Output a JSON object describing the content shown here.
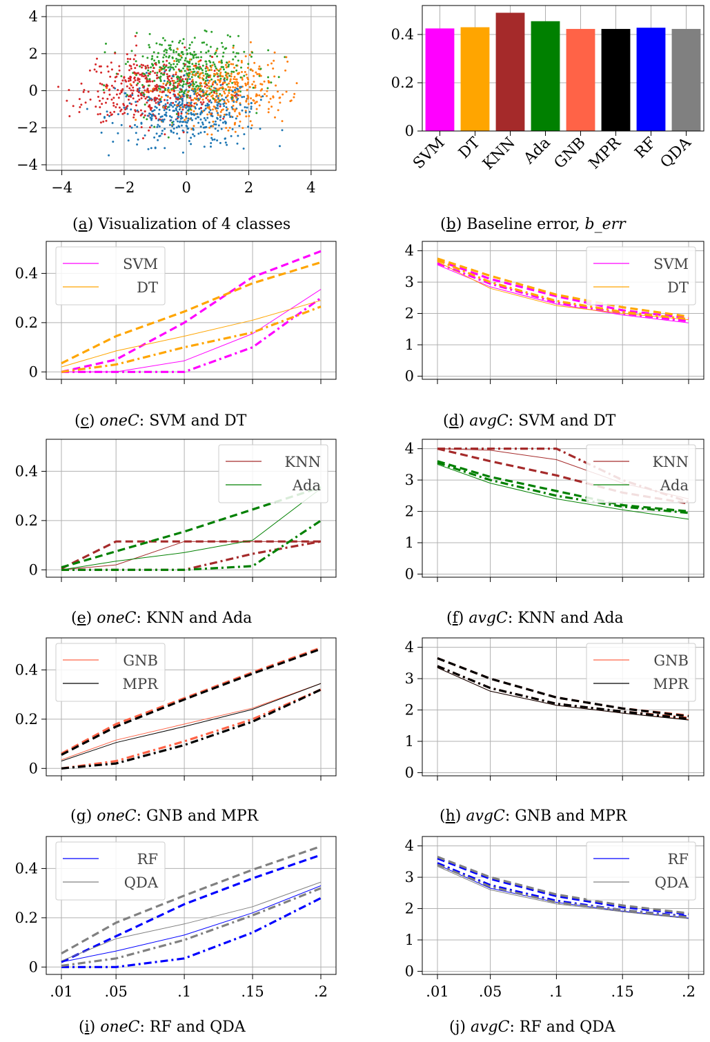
{
  "styles": {
    "colors": {
      "SVM": "#ff00ff",
      "DT": "#ffa500",
      "KNN": "#a52a2a",
      "Ada": "#008000",
      "GNB": "#ff6347",
      "MPR": "#000000",
      "RF": "#0000ff",
      "QDA": "#808080",
      "class_blue": "#1f77b4",
      "class_orange": "#ff7f0e",
      "class_green": "#2ca02c",
      "class_red": "#d62728"
    },
    "line_styles": [
      "solid",
      "dashed",
      "dashdot"
    ]
  },
  "captions": [
    {
      "letter": "a",
      "prefix": "",
      "italic": "",
      "rest": " Visualization of 4 classes"
    },
    {
      "letter": "b",
      "prefix": " Baseline error, ",
      "italic": "b_err",
      "rest": ""
    },
    {
      "letter": "c",
      "prefix": " ",
      "italic": "oneC",
      "rest": ": SVM and DT"
    },
    {
      "letter": "d",
      "prefix": " ",
      "italic": "avgC",
      "rest": ": SVM and DT"
    },
    {
      "letter": "e",
      "prefix": " ",
      "italic": "oneC",
      "rest": ": KNN and Ada"
    },
    {
      "letter": "f",
      "prefix": " ",
      "italic": "avgC",
      "rest": ": KNN and Ada"
    },
    {
      "letter": "g",
      "prefix": " ",
      "italic": "oneC",
      "rest": ": GNB and MPR"
    },
    {
      "letter": "h",
      "prefix": " ",
      "italic": "avgC",
      "rest": ": GNB and MPR"
    },
    {
      "letter": "i",
      "prefix": " ",
      "italic": "oneC",
      "rest": ": RF and QDA"
    },
    {
      "letter": "j",
      "prefix": " ",
      "italic": "avgC",
      "rest": ": RF and QDA"
    }
  ],
  "chart_data": [
    {
      "id": "a",
      "type": "scatter",
      "xlim": [
        -4.5,
        4.8
      ],
      "ylim": [
        -4.3,
        4.6
      ],
      "xticks": [
        -4,
        -2,
        0,
        2,
        4
      ],
      "yticks": [
        -4,
        -2,
        0,
        2,
        4
      ],
      "xtick_labels": [
        "−4",
        "−2",
        "0",
        "2",
        "4"
      ],
      "ytick_labels": [
        "−4",
        "−2",
        "0",
        "2",
        "4"
      ],
      "grid": true,
      "series": [
        {
          "color_key": "class_blue",
          "center": [
            0.0,
            -1.2
          ],
          "spread": [
            1.1,
            0.9
          ],
          "count": 400
        },
        {
          "color_key": "class_orange",
          "center": [
            1.2,
            0.0
          ],
          "spread": [
            1.0,
            0.9
          ],
          "count": 400
        },
        {
          "color_key": "class_green",
          "center": [
            0.0,
            1.1
          ],
          "spread": [
            1.0,
            0.9
          ],
          "count": 400
        },
        {
          "color_key": "class_red",
          "center": [
            -1.2,
            0.0
          ],
          "spread": [
            1.0,
            0.9
          ],
          "count": 400
        }
      ]
    },
    {
      "id": "b",
      "type": "bar",
      "categories": [
        "SVM",
        "DT",
        "KNN",
        "Ada",
        "GNB",
        "MPR",
        "RF",
        "QDA"
      ],
      "values": [
        0.425,
        0.43,
        0.49,
        0.455,
        0.423,
        0.423,
        0.428,
        0.423
      ],
      "ylim": [
        0,
        0.52
      ],
      "yticks": [
        0,
        0.2,
        0.4
      ],
      "ytick_labels": [
        "0",
        "0.2",
        "0.4"
      ],
      "grid": true
    },
    {
      "id": "c",
      "type": "line",
      "x": [
        0.01,
        0.05,
        0.1,
        0.15,
        0.2
      ],
      "xtick_labels": [],
      "ylim": [
        -0.03,
        0.53
      ],
      "yticks": [
        0,
        0.2,
        0.4
      ],
      "ytick_labels": [
        "0",
        "0.2",
        "0.4"
      ],
      "legend": [
        "SVM",
        "DT"
      ],
      "legend_loc": "upper-left",
      "series": [
        {
          "name": "SVM",
          "style": "solid",
          "values": [
            0.0,
            0.0,
            0.045,
            0.155,
            0.335
          ]
        },
        {
          "name": "SVM",
          "style": "dashed",
          "values": [
            0.0,
            0.05,
            0.2,
            0.385,
            0.49
          ]
        },
        {
          "name": "SVM",
          "style": "dashdot",
          "values": [
            0.0,
            0.0,
            0.0,
            0.1,
            0.3
          ]
        },
        {
          "name": "DT",
          "style": "solid",
          "values": [
            0.02,
            0.085,
            0.145,
            0.21,
            0.29
          ]
        },
        {
          "name": "DT",
          "style": "dashed",
          "values": [
            0.035,
            0.145,
            0.245,
            0.36,
            0.445
          ]
        },
        {
          "name": "DT",
          "style": "dashdot",
          "values": [
            0.0,
            0.03,
            0.1,
            0.16,
            0.265
          ]
        }
      ]
    },
    {
      "id": "d",
      "type": "line",
      "x": [
        0.01,
        0.05,
        0.1,
        0.15,
        0.2
      ],
      "xtick_labels": [],
      "ylim": [
        -0.1,
        4.3
      ],
      "yticks": [
        0,
        1,
        2,
        3,
        4
      ],
      "ytick_labels": [
        "0",
        "1",
        "2",
        "3",
        "4"
      ],
      "legend": [
        "SVM",
        "DT"
      ],
      "legend_loc": "upper-right",
      "series": [
        {
          "name": "SVM",
          "style": "solid",
          "values": [
            3.55,
            2.85,
            2.3,
            1.95,
            1.7
          ]
        },
        {
          "name": "SVM",
          "style": "dashed",
          "values": [
            3.7,
            3.1,
            2.55,
            2.1,
            1.85
          ]
        },
        {
          "name": "SVM",
          "style": "dashdot",
          "values": [
            3.6,
            2.95,
            2.35,
            2.0,
            1.75
          ]
        },
        {
          "name": "DT",
          "style": "solid",
          "values": [
            3.65,
            2.8,
            2.25,
            2.0,
            1.8
          ]
        },
        {
          "name": "DT",
          "style": "dashed",
          "values": [
            3.75,
            3.2,
            2.6,
            2.2,
            1.9
          ]
        },
        {
          "name": "DT",
          "style": "dashdot",
          "values": [
            3.7,
            3.0,
            2.4,
            2.05,
            1.82
          ]
        }
      ]
    },
    {
      "id": "e",
      "type": "line",
      "x": [
        0.01,
        0.05,
        0.1,
        0.15,
        0.2
      ],
      "xtick_labels": [],
      "ylim": [
        -0.03,
        0.53
      ],
      "yticks": [
        0,
        0.2,
        0.4
      ],
      "ytick_labels": [
        "0",
        "0.2",
        "0.4"
      ],
      "legend": [
        "KNN",
        "Ada"
      ],
      "legend_loc": "upper-right",
      "series": [
        {
          "name": "KNN",
          "style": "solid",
          "values": [
            0.0,
            0.02,
            0.115,
            0.115,
            0.115
          ]
        },
        {
          "name": "KNN",
          "style": "dashed",
          "values": [
            0.005,
            0.115,
            0.115,
            0.115,
            0.115
          ]
        },
        {
          "name": "KNN",
          "style": "dashdot",
          "values": [
            0.0,
            0.0,
            0.0,
            0.065,
            0.115
          ]
        },
        {
          "name": "Ada",
          "style": "solid",
          "values": [
            0.0,
            0.035,
            0.07,
            0.12,
            0.33
          ]
        },
        {
          "name": "Ada",
          "style": "dashed",
          "values": [
            0.01,
            0.075,
            0.155,
            0.245,
            0.335
          ]
        },
        {
          "name": "Ada",
          "style": "dashdot",
          "values": [
            0.0,
            0.0,
            0.0,
            0.015,
            0.2
          ]
        }
      ]
    },
    {
      "id": "f",
      "type": "line",
      "x": [
        0.01,
        0.05,
        0.1,
        0.15,
        0.2
      ],
      "xtick_labels": [],
      "ylim": [
        -0.1,
        4.3
      ],
      "yticks": [
        0,
        1,
        2,
        3,
        4
      ],
      "ytick_labels": [
        "0",
        "1",
        "2",
        "3",
        "4"
      ],
      "legend": [
        "KNN",
        "Ada"
      ],
      "legend_loc": "upper-right",
      "series": [
        {
          "name": "KNN",
          "style": "solid",
          "values": [
            4.0,
            3.95,
            3.65,
            2.9,
            2.4
          ]
        },
        {
          "name": "KNN",
          "style": "dashed",
          "values": [
            4.0,
            3.6,
            3.15,
            2.6,
            2.25
          ]
        },
        {
          "name": "KNN",
          "style": "dashdot",
          "values": [
            4.0,
            4.0,
            4.0,
            3.0,
            2.3
          ]
        },
        {
          "name": "Ada",
          "style": "solid",
          "values": [
            3.5,
            2.9,
            2.4,
            2.05,
            1.75
          ]
        },
        {
          "name": "Ada",
          "style": "dashed",
          "values": [
            3.6,
            3.1,
            2.65,
            2.2,
            2.0
          ]
        },
        {
          "name": "Ada",
          "style": "dashdot",
          "values": [
            3.55,
            3.0,
            2.5,
            2.15,
            1.95
          ]
        }
      ]
    },
    {
      "id": "g",
      "type": "line",
      "x": [
        0.01,
        0.05,
        0.1,
        0.15,
        0.2
      ],
      "xtick_labels": [],
      "ylim": [
        -0.03,
        0.53
      ],
      "yticks": [
        0,
        0.2,
        0.4
      ],
      "ytick_labels": [
        "0",
        "0.2",
        "0.4"
      ],
      "legend": [
        "GNB",
        "MPR"
      ],
      "legend_loc": "upper-left",
      "series": [
        {
          "name": "GNB",
          "style": "solid",
          "values": [
            0.035,
            0.115,
            0.18,
            0.245,
            0.345
          ]
        },
        {
          "name": "GNB",
          "style": "dashed",
          "values": [
            0.06,
            0.18,
            0.285,
            0.39,
            0.49
          ]
        },
        {
          "name": "GNB",
          "style": "dashdot",
          "values": [
            0.0,
            0.03,
            0.11,
            0.2,
            0.32
          ]
        },
        {
          "name": "MPR",
          "style": "solid",
          "values": [
            0.03,
            0.105,
            0.17,
            0.24,
            0.345
          ]
        },
        {
          "name": "MPR",
          "style": "dashed",
          "values": [
            0.055,
            0.17,
            0.28,
            0.385,
            0.485
          ]
        },
        {
          "name": "MPR",
          "style": "dashdot",
          "values": [
            0.0,
            0.02,
            0.095,
            0.19,
            0.32
          ]
        }
      ]
    },
    {
      "id": "h",
      "type": "line",
      "x": [
        0.01,
        0.05,
        0.1,
        0.15,
        0.2
      ],
      "xtick_labels": [],
      "ylim": [
        -0.1,
        4.3
      ],
      "yticks": [
        0,
        1,
        2,
        3,
        4
      ],
      "ytick_labels": [
        "0",
        "1",
        "2",
        "3",
        "4"
      ],
      "legend": [
        "GNB",
        "MPR"
      ],
      "legend_loc": "upper-right",
      "series": [
        {
          "name": "GNB",
          "style": "solid",
          "values": [
            3.35,
            2.6,
            2.15,
            1.9,
            1.7
          ]
        },
        {
          "name": "GNB",
          "style": "dashed",
          "values": [
            3.65,
            3.0,
            2.4,
            2.05,
            1.82
          ]
        },
        {
          "name": "GNB",
          "style": "dashdot",
          "values": [
            3.4,
            2.7,
            2.2,
            1.95,
            1.75
          ]
        },
        {
          "name": "MPR",
          "style": "solid",
          "values": [
            3.35,
            2.6,
            2.15,
            1.9,
            1.68
          ]
        },
        {
          "name": "MPR",
          "style": "dashed",
          "values": [
            3.65,
            3.0,
            2.4,
            2.05,
            1.8
          ]
        },
        {
          "name": "MPR",
          "style": "dashdot",
          "values": [
            3.4,
            2.7,
            2.2,
            1.95,
            1.72
          ]
        }
      ]
    },
    {
      "id": "i",
      "type": "line",
      "x": [
        0.01,
        0.05,
        0.1,
        0.15,
        0.2
      ],
      "xtick_labels": [
        ".01",
        ".05",
        ".1",
        ".15",
        ".2"
      ],
      "ylim": [
        -0.03,
        0.53
      ],
      "yticks": [
        0,
        0.2,
        0.4
      ],
      "ytick_labels": [
        "0",
        "0.2",
        "0.4"
      ],
      "legend": [
        "RF",
        "QDA"
      ],
      "legend_loc": "upper-left",
      "series": [
        {
          "name": "RF",
          "style": "solid",
          "values": [
            0.02,
            0.065,
            0.13,
            0.22,
            0.33
          ]
        },
        {
          "name": "RF",
          "style": "dashed",
          "values": [
            0.02,
            0.125,
            0.255,
            0.36,
            0.455
          ]
        },
        {
          "name": "RF",
          "style": "dashdot",
          "values": [
            0.0,
            0.0,
            0.035,
            0.14,
            0.28
          ]
        },
        {
          "name": "QDA",
          "style": "solid",
          "values": [
            0.025,
            0.115,
            0.175,
            0.245,
            0.345
          ]
        },
        {
          "name": "QDA",
          "style": "dashed",
          "values": [
            0.055,
            0.18,
            0.29,
            0.395,
            0.49
          ]
        },
        {
          "name": "QDA",
          "style": "dashdot",
          "values": [
            0.005,
            0.035,
            0.11,
            0.21,
            0.32
          ]
        }
      ]
    },
    {
      "id": "j",
      "type": "line",
      "x": [
        0.01,
        0.05,
        0.1,
        0.15,
        0.2
      ],
      "xtick_labels": [
        ".01",
        ".05",
        ".1",
        ".15",
        ".2"
      ],
      "ylim": [
        -0.1,
        4.3
      ],
      "yticks": [
        0,
        1,
        2,
        3,
        4
      ],
      "ytick_labels": [
        "0",
        "1",
        "2",
        "3",
        "4"
      ],
      "legend": [
        "RF",
        "QDA"
      ],
      "legend_loc": "upper-right",
      "series": [
        {
          "name": "RF",
          "style": "solid",
          "values": [
            3.4,
            2.65,
            2.2,
            1.92,
            1.7
          ]
        },
        {
          "name": "RF",
          "style": "dashed",
          "values": [
            3.6,
            2.95,
            2.4,
            2.05,
            1.82
          ]
        },
        {
          "name": "RF",
          "style": "dashdot",
          "values": [
            3.45,
            2.75,
            2.25,
            1.95,
            1.75
          ]
        },
        {
          "name": "QDA",
          "style": "solid",
          "values": [
            3.35,
            2.6,
            2.15,
            1.9,
            1.68
          ]
        },
        {
          "name": "QDA",
          "style": "dashed",
          "values": [
            3.65,
            3.0,
            2.45,
            2.1,
            1.85
          ]
        },
        {
          "name": "QDA",
          "style": "dashdot",
          "values": [
            3.4,
            2.7,
            2.2,
            1.95,
            1.72
          ]
        }
      ]
    }
  ]
}
